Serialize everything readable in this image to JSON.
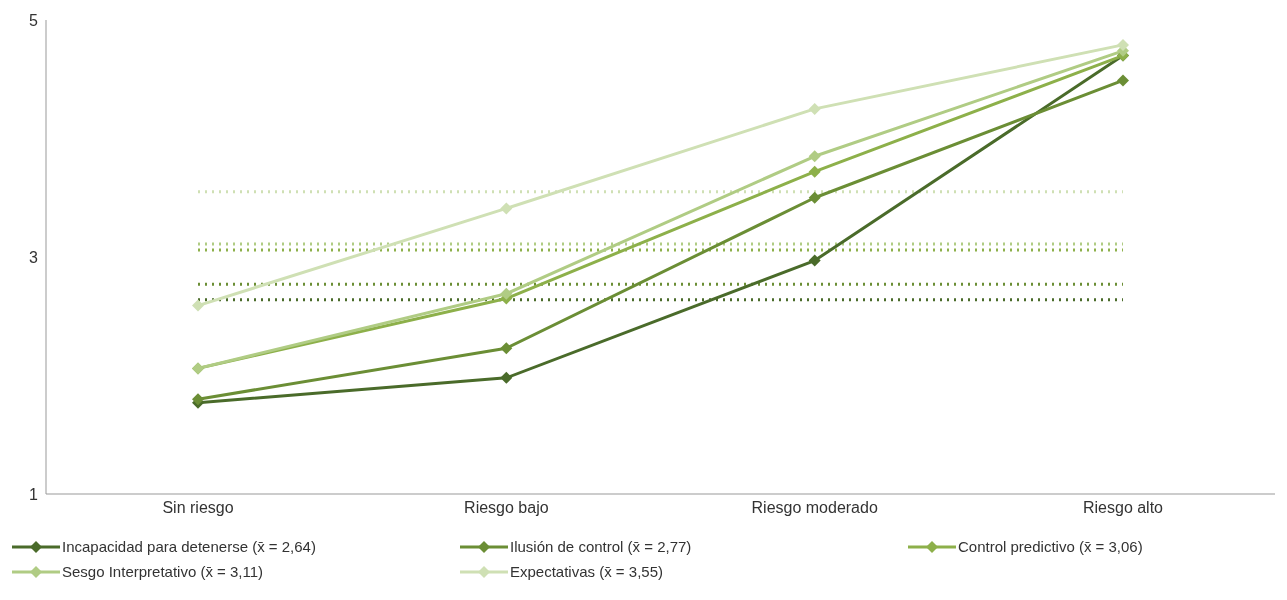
{
  "chart_data": {
    "type": "line",
    "categories": [
      "Sin riesgo",
      "Riesgo bajo",
      "Riesgo moderado",
      "Riesgo alto"
    ],
    "series": [
      {
        "name": "Incapacidad para detenerse (x̄ = 2,64)",
        "color": "#4a6b2a",
        "values": [
          1.77,
          1.98,
          2.97,
          4.7
        ]
      },
      {
        "name": "Ilusión de control (x̄ = 2,77)",
        "color": "#6b8e35",
        "values": [
          1.8,
          2.23,
          3.5,
          4.49
        ]
      },
      {
        "name": "Control predictivo (x̄ = 3,06)",
        "color": "#8db04a",
        "values": [
          2.06,
          2.65,
          3.72,
          4.7
        ]
      },
      {
        "name": "Sesgo Interpretativo (x̄ = 3,11)",
        "color": "#b0cc84",
        "values": [
          2.06,
          2.69,
          3.85,
          4.74
        ]
      },
      {
        "name": "Expectativas (x̄ = 3,55)",
        "color": "#cfe0b4",
        "values": [
          2.59,
          3.41,
          4.25,
          4.79
        ]
      }
    ],
    "ref_lines": [
      {
        "axis": "y",
        "value": 2.64,
        "color": "#4a6b2a",
        "line_style": "dotted"
      },
      {
        "axis": "y",
        "value": 2.77,
        "color": "#6b8e35",
        "line_style": "dotted"
      },
      {
        "axis": "y",
        "value": 3.06,
        "color": "#8db04a",
        "line_style": "dotted"
      },
      {
        "axis": "y",
        "value": 3.11,
        "color": "#b0cc84",
        "line_style": "dotted"
      },
      {
        "axis": "y",
        "value": 3.55,
        "color": "#cfe0b4",
        "line_style": "dotted"
      }
    ],
    "ylim": [
      1,
      5
    ],
    "yticks": [
      1,
      3,
      5
    ],
    "grid": false,
    "legend": "bottom",
    "marker": "diamond",
    "line_style": "solid"
  }
}
